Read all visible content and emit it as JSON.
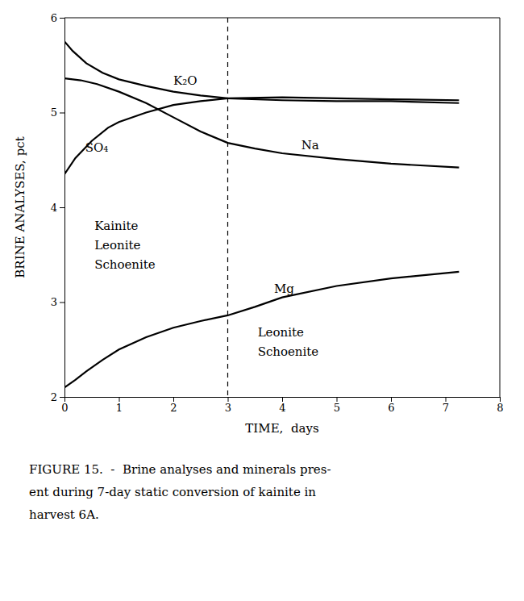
{
  "chart_data": {
    "type": "line",
    "xlabel": "TIME,  days",
    "ylabel": "BRINE ANALYSES, pct",
    "xlim": [
      0,
      8
    ],
    "ylim": [
      2.0,
      6.0
    ],
    "xticks": [
      0,
      1,
      2,
      3,
      4,
      5,
      6,
      7,
      8
    ],
    "yticks": [
      2,
      3,
      4,
      5,
      6
    ],
    "series": [
      {
        "name": "K₂O",
        "color": "#000000",
        "x": [
          0.0,
          0.15,
          0.4,
          0.7,
          1.0,
          1.5,
          2.0,
          2.5,
          3.0,
          4.0,
          5.0,
          6.0,
          7.25
        ],
        "values": [
          5.75,
          5.65,
          5.52,
          5.42,
          5.35,
          5.28,
          5.22,
          5.18,
          5.15,
          5.13,
          5.12,
          5.12,
          5.1
        ]
      },
      {
        "name": "SO₄",
        "color": "#000000",
        "x": [
          0.0,
          0.2,
          0.5,
          0.8,
          1.0,
          1.5,
          2.0,
          2.5,
          3.0,
          4.0,
          5.0,
          6.0,
          7.25
        ],
        "values": [
          4.35,
          4.52,
          4.7,
          4.84,
          4.9,
          5.0,
          5.08,
          5.12,
          5.15,
          5.16,
          5.15,
          5.14,
          5.13
        ]
      },
      {
        "name": "Na",
        "color": "#000000",
        "x": [
          0.0,
          0.3,
          0.6,
          1.0,
          1.5,
          2.0,
          2.5,
          3.0,
          3.5,
          4.0,
          5.0,
          6.0,
          7.25
        ],
        "values": [
          5.36,
          5.34,
          5.3,
          5.22,
          5.1,
          4.95,
          4.8,
          4.68,
          4.62,
          4.57,
          4.51,
          4.46,
          4.42
        ]
      },
      {
        "name": "Mg",
        "color": "#000000",
        "x": [
          0.0,
          0.2,
          0.4,
          0.7,
          1.0,
          1.5,
          2.0,
          2.5,
          3.0,
          3.5,
          4.0,
          5.0,
          6.0,
          7.25
        ],
        "values": [
          2.1,
          2.18,
          2.27,
          2.39,
          2.5,
          2.63,
          2.73,
          2.8,
          2.86,
          2.95,
          3.05,
          3.17,
          3.25,
          3.32
        ]
      }
    ],
    "vlines": [
      3.0
    ],
    "annotations": [
      "Kainite\nLeonite\nSchoenite",
      "Leonite\nSchoenite"
    ],
    "caption": [
      "FIGURE 15.  -  Brine analyses and minerals pres-",
      "ent during 7-day static conversion of kainite in",
      "harvest 6A."
    ]
  }
}
